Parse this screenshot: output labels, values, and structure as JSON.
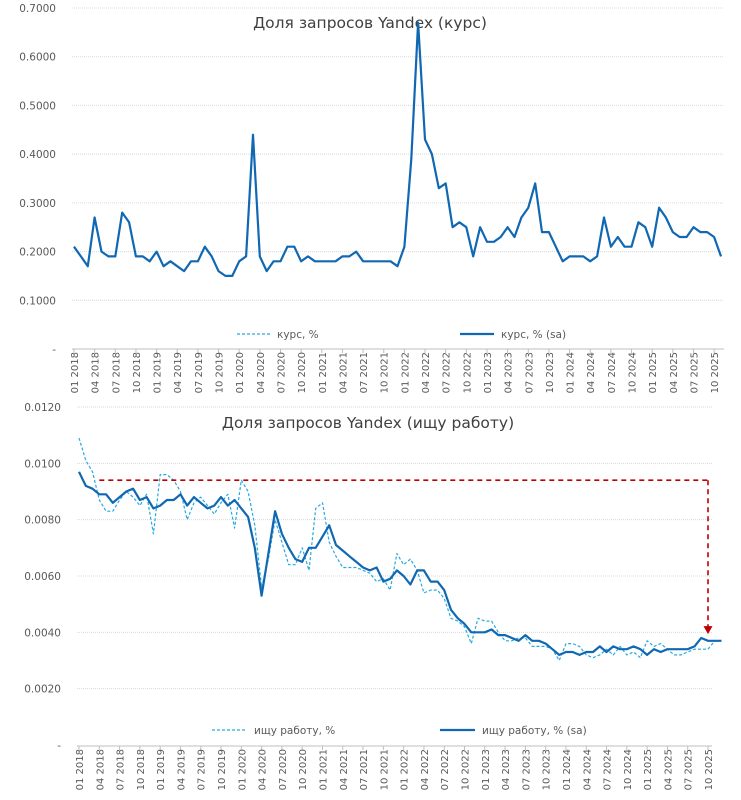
{
  "colors": {
    "raw": "#27a9e1",
    "sa": "#1068b3",
    "annotation": "#c00000",
    "grid": "#d9d9d9",
    "axis": "#bfbfbf"
  },
  "chart_data": [
    {
      "type": "line",
      "title": "Доля запросов Yandex (курс)",
      "xlabel": "",
      "ylabel": "",
      "ylim": [
        0,
        0.7
      ],
      "yticks": [
        "-",
        "0.1000",
        "0.2000",
        "0.3000",
        "0.4000",
        "0.5000",
        "0.6000",
        "0.7000"
      ],
      "ytick_values": [
        0,
        0.1,
        0.2,
        0.3,
        0.4,
        0.5,
        0.6,
        0.7
      ],
      "grid": true,
      "legend_position": "bottom",
      "xtick_labels": [
        "01 2018",
        "04 2018",
        "07 2018",
        "10 2018",
        "01 2019",
        "04 2019",
        "07 2019",
        "10 2019",
        "01 2020",
        "04 2020",
        "07 2020",
        "10 2020",
        "01 2021",
        "04 2021",
        "07 2021",
        "10 2021",
        "01 2022",
        "04 2022",
        "07 2022",
        "10 2022",
        "01 2023",
        "04 2023",
        "07 2023",
        "10 2023",
        "01 2024",
        "04 2024",
        "07 2024",
        "10 2024",
        "01 2025",
        "04 2025",
        "07 2025",
        "10 2025"
      ],
      "series": [
        {
          "name": "курс, %",
          "style": "dashed",
          "values": [
            0.21,
            0.19,
            0.17,
            0.27,
            0.2,
            0.19,
            0.19,
            0.28,
            0.26,
            0.19,
            0.19,
            0.18,
            0.2,
            0.17,
            0.18,
            0.17,
            0.16,
            0.18,
            0.18,
            0.21,
            0.19,
            0.16,
            0.15,
            0.15,
            0.18,
            0.19,
            0.44,
            0.19,
            0.16,
            0.18,
            0.18,
            0.21,
            0.21,
            0.18,
            0.19,
            0.18,
            0.18,
            0.18,
            0.18,
            0.19,
            0.19,
            0.2,
            0.18,
            0.18,
            0.18,
            0.18,
            0.18,
            0.17,
            0.21,
            0.39,
            0.67,
            0.43,
            0.4,
            0.33,
            0.34,
            0.25,
            0.26,
            0.25,
            0.19,
            0.25,
            0.22,
            0.22,
            0.23,
            0.25,
            0.23,
            0.27,
            0.29,
            0.34,
            0.24,
            0.24,
            0.21,
            0.18,
            0.19,
            0.19,
            0.19,
            0.18,
            0.19,
            0.27,
            0.21,
            0.23,
            0.21,
            0.21,
            0.26,
            0.25,
            0.21,
            0.29,
            0.27,
            0.24,
            0.23,
            0.23,
            0.25,
            0.24,
            0.24,
            0.23,
            0.19
          ]
        },
        {
          "name": "курс, % (sa)",
          "style": "solid",
          "values": [
            0.21,
            0.19,
            0.17,
            0.27,
            0.2,
            0.19,
            0.19,
            0.28,
            0.26,
            0.19,
            0.19,
            0.18,
            0.2,
            0.17,
            0.18,
            0.17,
            0.16,
            0.18,
            0.18,
            0.21,
            0.19,
            0.16,
            0.15,
            0.15,
            0.18,
            0.19,
            0.44,
            0.19,
            0.16,
            0.18,
            0.18,
            0.21,
            0.21,
            0.18,
            0.19,
            0.18,
            0.18,
            0.18,
            0.18,
            0.19,
            0.19,
            0.2,
            0.18,
            0.18,
            0.18,
            0.18,
            0.18,
            0.17,
            0.21,
            0.39,
            0.67,
            0.43,
            0.4,
            0.33,
            0.34,
            0.25,
            0.26,
            0.25,
            0.19,
            0.25,
            0.22,
            0.22,
            0.23,
            0.25,
            0.23,
            0.27,
            0.29,
            0.34,
            0.24,
            0.24,
            0.21,
            0.18,
            0.19,
            0.19,
            0.19,
            0.18,
            0.19,
            0.27,
            0.21,
            0.23,
            0.21,
            0.21,
            0.26,
            0.25,
            0.21,
            0.29,
            0.27,
            0.24,
            0.23,
            0.23,
            0.25,
            0.24,
            0.24,
            0.23,
            0.19
          ]
        }
      ]
    },
    {
      "type": "line",
      "title": "Доля запросов Yandex (ищу работу)",
      "xlabel": "",
      "ylabel": "",
      "ylim": [
        0,
        0.012
      ],
      "yticks": [
        "-",
        "0.0020",
        "0.0040",
        "0.0060",
        "0.0080",
        "0.0100",
        "0.0120"
      ],
      "ytick_values": [
        0,
        0.002,
        0.004,
        0.006,
        0.008,
        0.01,
        0.012
      ],
      "grid": true,
      "legend_position": "bottom",
      "xtick_labels": [
        "01 2018",
        "04 2018",
        "07 2018",
        "10 2018",
        "01 2019",
        "04 2019",
        "07 2019",
        "10 2019",
        "01 2020",
        "04 2020",
        "07 2020",
        "10 2020",
        "01 2021",
        "04 2021",
        "07 2021",
        "10 2021",
        "01 2022",
        "04 2022",
        "07 2022",
        "10 2022",
        "01 2023",
        "04 2023",
        "07 2023",
        "10 2023",
        "01 2024",
        "04 2024",
        "07 2024",
        "10 2024",
        "01 2025",
        "04 2025",
        "07 2025",
        "10 2025"
      ],
      "annotation": {
        "type": "dashed-arrow",
        "from_x_index": 3,
        "to_x_index": 93,
        "level": 0.0094,
        "arrow_to": 0.0039
      },
      "series": [
        {
          "name": "ищу работу, %",
          "style": "dashed",
          "values": [
            0.0109,
            0.0101,
            0.0097,
            0.0087,
            0.0083,
            0.0083,
            0.0087,
            0.009,
            0.0088,
            0.0085,
            0.0089,
            0.0075,
            0.0096,
            0.0096,
            0.0094,
            0.009,
            0.008,
            0.0086,
            0.0088,
            0.0085,
            0.0082,
            0.0086,
            0.0089,
            0.0077,
            0.0094,
            0.009,
            0.0078,
            0.0056,
            0.0066,
            0.008,
            0.0072,
            0.0064,
            0.0064,
            0.007,
            0.0062,
            0.0084,
            0.0086,
            0.0072,
            0.0067,
            0.0063,
            0.0063,
            0.0063,
            0.0062,
            0.0061,
            0.0058,
            0.0059,
            0.0055,
            0.0068,
            0.0064,
            0.0066,
            0.0062,
            0.0054,
            0.0055,
            0.0055,
            0.0052,
            0.0045,
            0.0044,
            0.0042,
            0.0036,
            0.0045,
            0.0044,
            0.0044,
            0.004,
            0.0037,
            0.0037,
            0.0038,
            0.0038,
            0.0035,
            0.0035,
            0.0035,
            0.0034,
            0.003,
            0.0036,
            0.0036,
            0.0035,
            0.0032,
            0.0031,
            0.0032,
            0.0034,
            0.0032,
            0.0035,
            0.0032,
            0.0033,
            0.0031,
            0.0037,
            0.0035,
            0.0036,
            0.0034,
            0.0032,
            0.0032,
            0.0033,
            0.0034,
            0.0034,
            0.0034,
            0.0037,
            0.0037
          ]
        },
        {
          "name": "ищу работу, % (sa)",
          "style": "solid",
          "values": [
            0.0097,
            0.0092,
            0.0091,
            0.0089,
            0.0089,
            0.0086,
            0.0088,
            0.009,
            0.0091,
            0.0087,
            0.0088,
            0.0084,
            0.0085,
            0.0087,
            0.0087,
            0.0089,
            0.0085,
            0.0088,
            0.0086,
            0.0084,
            0.0085,
            0.0088,
            0.0085,
            0.0087,
            0.0084,
            0.0081,
            0.007,
            0.0053,
            0.0068,
            0.0083,
            0.0075,
            0.007,
            0.0066,
            0.0065,
            0.007,
            0.007,
            0.0074,
            0.0078,
            0.0071,
            0.0069,
            0.0067,
            0.0065,
            0.0063,
            0.0062,
            0.0063,
            0.0058,
            0.0059,
            0.0062,
            0.006,
            0.0057,
            0.0062,
            0.0062,
            0.0058,
            0.0058,
            0.0055,
            0.0048,
            0.0045,
            0.0043,
            0.004,
            0.004,
            0.004,
            0.0041,
            0.0039,
            0.0039,
            0.0038,
            0.0037,
            0.0039,
            0.0037,
            0.0037,
            0.0036,
            0.0034,
            0.0032,
            0.0033,
            0.0033,
            0.0032,
            0.0033,
            0.0033,
            0.0035,
            0.0033,
            0.0035,
            0.0034,
            0.0034,
            0.0035,
            0.0034,
            0.0032,
            0.0034,
            0.0033,
            0.0034,
            0.0034,
            0.0034,
            0.0034,
            0.0035,
            0.0038,
            0.0037,
            0.0037,
            0.0037
          ]
        }
      ]
    }
  ]
}
